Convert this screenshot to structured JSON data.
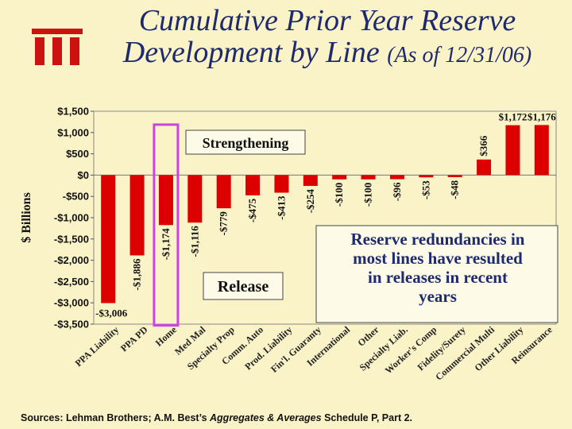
{
  "title_line1": "Cumulative Prior Year Reserve",
  "title_line2_main": "Development by Line",
  "title_line2_sub": "(As of 12/31/06)",
  "source": {
    "prefix": "Sources: Lehman Brothers; A.M. Best’s ",
    "italic": "Aggregates & Averages",
    "suffix": " Schedule P, Part 2."
  },
  "colors": {
    "bar": "#dd0000",
    "title": "#1e2a6e",
    "highlight": "#cc44dd",
    "background": "#fbf3c8",
    "logo": "#cc1111"
  },
  "chart_data": {
    "type": "bar",
    "categories": [
      "PPA Liability",
      "PPA PD",
      "Home",
      "Med Mal",
      "Specialty Prop",
      "Comm. Auto",
      "Prod. Liability",
      "Fin'l. Guaranty",
      "International",
      "Other",
      "Specialty Liab.",
      "Worker's Comp",
      "Fidelity/Surety",
      "Commercial Multi",
      "Other Liability",
      "Reinsurance"
    ],
    "values": [
      -3006,
      -1886,
      -1174,
      -1116,
      -779,
      -475,
      -413,
      -254,
      -100,
      -100,
      -96,
      -53,
      -48,
      366,
      1172,
      1176
    ],
    "value_labels": [
      "-$3,006",
      "-$1,886",
      "-$1,174",
      "-$1,116",
      "-$779",
      "-$475",
      "-$413",
      "-$254",
      "-$100",
      "-$100",
      "-$96",
      "-$53",
      "-$48",
      "$366",
      "$1,172",
      "$1,176"
    ],
    "ylabel": "$ Billions",
    "yticks": [
      1500,
      1000,
      500,
      0,
      -500,
      -1000,
      -1500,
      -2000,
      -2500,
      -3000,
      -3500
    ],
    "ytick_labels": [
      "$1,500",
      "$1,000",
      "$500",
      "$0",
      "-$500",
      "-$1,000",
      "-$1,500",
      "-$2,000",
      "-$2,500",
      "-$3,000",
      "-$3,500"
    ],
    "ylim": [
      -3500,
      1500
    ],
    "annotations": {
      "strengthening": "Strengthening",
      "release": "Release",
      "note": [
        "Reserve redundancies in",
        "most lines have resulted",
        "in releases in recent",
        "years"
      ]
    },
    "highlighted_category": "Home"
  }
}
